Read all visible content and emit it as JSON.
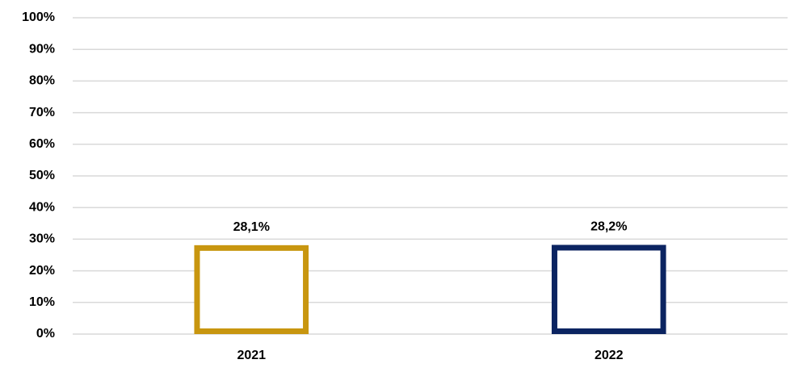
{
  "chart_data": {
    "type": "bar",
    "categories": [
      "2021",
      "2022"
    ],
    "values": [
      28.1,
      28.2
    ],
    "value_labels": [
      "28,1%",
      "28,2%"
    ],
    "colors": [
      "#c8960f",
      "#0b2461"
    ],
    "ylim": [
      0,
      100
    ],
    "yticks": [
      {
        "value": 0,
        "label": "0%"
      },
      {
        "value": 10,
        "label": "10%"
      },
      {
        "value": 20,
        "label": "20%"
      },
      {
        "value": 30,
        "label": "30%"
      },
      {
        "value": 40,
        "label": "40%"
      },
      {
        "value": 50,
        "label": "50%"
      },
      {
        "value": 60,
        "label": "60%"
      },
      {
        "value": 70,
        "label": "70%"
      },
      {
        "value": 80,
        "label": "80%"
      },
      {
        "value": 90,
        "label": "90%"
      },
      {
        "value": 100,
        "label": "100%"
      }
    ],
    "grid": true
  }
}
